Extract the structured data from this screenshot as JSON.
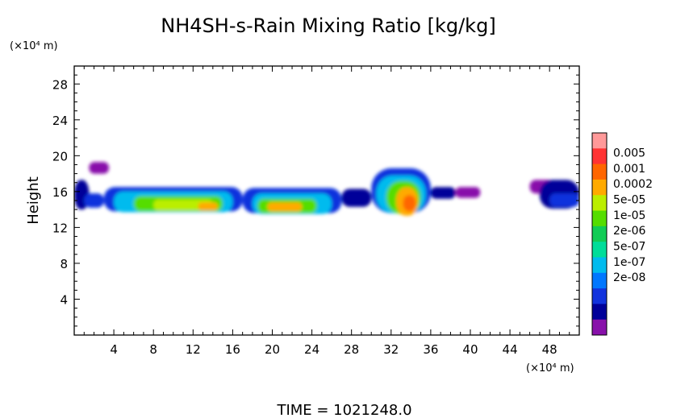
{
  "chart_data": {
    "type": "heatmap",
    "title": "NH4SH-s-Rain Mixing Ratio [kg/kg]",
    "xlabel": "",
    "ylabel": "Height",
    "x_unit": "(×10⁴ m)",
    "y_unit": "(×10⁴ m)",
    "xlim": [
      0,
      51
    ],
    "ylim": [
      0,
      30
    ],
    "xticks": [
      4,
      8,
      12,
      16,
      20,
      24,
      28,
      32,
      36,
      40,
      44,
      48
    ],
    "yticks": [
      4,
      8,
      12,
      16,
      20,
      24,
      28
    ],
    "grid": false,
    "colorbar": {
      "labels": [
        "0.005",
        "0.001",
        "0.0002",
        "5e-05",
        "1e-05",
        "2e-06",
        "5e-07",
        "1e-07",
        "2e-08"
      ],
      "colors": [
        "#ff9999",
        "#ff3333",
        "#ff6600",
        "#ffaa00",
        "#bbee00",
        "#55dd00",
        "#11cc55",
        "#00dd99",
        "#00bbee",
        "#0077ff",
        "#1133dd",
        "#000099",
        "#8811aa"
      ]
    },
    "regions": [
      {
        "x0": 0,
        "x1": 1.5,
        "y0": 14.0,
        "y1": 17.3,
        "level": 1
      },
      {
        "x0": 1,
        "x1": 3,
        "y0": 14.2,
        "y1": 15.8,
        "level": 2
      },
      {
        "x0": 1.5,
        "x1": 3.5,
        "y0": 18.0,
        "y1": 19.3,
        "level": 0
      },
      {
        "x0": 3,
        "x1": 17,
        "y0": 13.8,
        "y1": 16.5,
        "level": 2
      },
      {
        "x0": 4,
        "x1": 16,
        "y0": 13.7,
        "y1": 16.0,
        "level": 4
      },
      {
        "x0": 6,
        "x1": 15,
        "y0": 13.8,
        "y1": 15.5,
        "level": 7
      },
      {
        "x0": 8,
        "x1": 14,
        "y0": 13.9,
        "y1": 15.1,
        "level": 8
      },
      {
        "x0": 12.5,
        "x1": 14.5,
        "y0": 13.9,
        "y1": 14.8,
        "level": 9
      },
      {
        "x0": 17,
        "x1": 27,
        "y0": 13.6,
        "y1": 16.4,
        "level": 2
      },
      {
        "x0": 18,
        "x1": 26,
        "y0": 13.5,
        "y1": 15.8,
        "level": 4
      },
      {
        "x0": 18.5,
        "x1": 24.5,
        "y0": 13.6,
        "y1": 15.2,
        "level": 7
      },
      {
        "x0": 19.5,
        "x1": 23,
        "y0": 13.8,
        "y1": 14.8,
        "level": 9
      },
      {
        "x0": 27,
        "x1": 30,
        "y0": 14.3,
        "y1": 16.3,
        "level": 1
      },
      {
        "x0": 30,
        "x1": 36,
        "y0": 13.6,
        "y1": 18.6,
        "level": 2
      },
      {
        "x0": 30.5,
        "x1": 35.5,
        "y0": 13.6,
        "y1": 17.8,
        "level": 4
      },
      {
        "x0": 31.5,
        "x1": 35,
        "y0": 13.5,
        "y1": 17.2,
        "level": 7
      },
      {
        "x0": 32.5,
        "x1": 34.7,
        "y0": 13.3,
        "y1": 16.5,
        "level": 9
      },
      {
        "x0": 33.2,
        "x1": 34.5,
        "y0": 13.8,
        "y1": 15.6,
        "level": 10
      },
      {
        "x0": 36,
        "x1": 38.5,
        "y0": 15.2,
        "y1": 16.5,
        "level": 1
      },
      {
        "x0": 38.5,
        "x1": 41,
        "y0": 15.3,
        "y1": 16.5,
        "level": 0
      },
      {
        "x0": 46,
        "x1": 48.5,
        "y0": 15.8,
        "y1": 17.3,
        "level": 0
      },
      {
        "x0": 47,
        "x1": 51,
        "y0": 14.1,
        "y1": 17.3,
        "level": 1
      },
      {
        "x0": 48,
        "x1": 51,
        "y0": 14.3,
        "y1": 15.8,
        "level": 2
      }
    ]
  },
  "footer": {
    "time_label": "TIME  =  1021248.0"
  }
}
